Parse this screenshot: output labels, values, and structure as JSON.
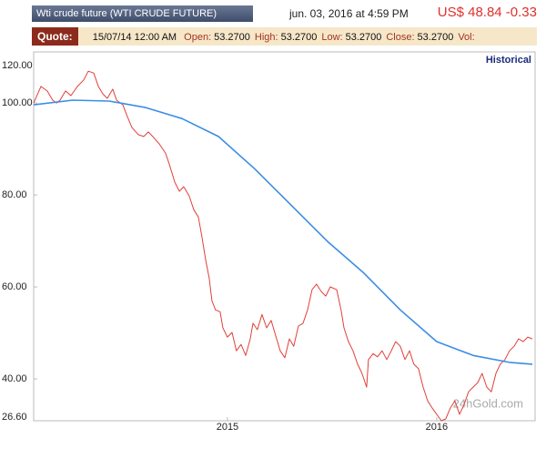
{
  "header": {
    "title": "Wti crude future (WTI CRUDE FUTURE)",
    "timestamp": "jun. 03, 2016 at 4:59 PM",
    "price": "US$ 48.84 -0.33"
  },
  "quote": {
    "label": "Quote:",
    "date": "15/07/14 12:00 AM",
    "fields": [
      {
        "name": "Open:",
        "value": "53.2700"
      },
      {
        "name": "High:",
        "value": "53.2700"
      },
      {
        "name": "Low:",
        "value": "53.2700"
      },
      {
        "name": "Close:",
        "value": "53.2700"
      },
      {
        "name": "Vol:"
      }
    ]
  },
  "chart_data": {
    "type": "line",
    "range_label": "Historical",
    "watermark": "24hGold.com",
    "y_end_labels": [
      "120.00",
      "26.60"
    ],
    "xlim": [
      2014.074,
      2016.47
    ],
    "xticks": [
      2015,
      2016
    ],
    "ylim": [
      30.9,
      111.1
    ],
    "yticks": [
      {
        "value": 40,
        "label": "40.00"
      },
      {
        "value": 60,
        "label": "60.00"
      },
      {
        "value": 80,
        "label": "80.00"
      },
      {
        "value": 100,
        "label": "100.00"
      }
    ],
    "grid": false,
    "series": [
      {
        "color": "#e0403a",
        "x": [
          2014.074,
          2014.109,
          2014.139,
          2014.165,
          2014.183,
          2014.2,
          2014.226,
          2014.252,
          2014.283,
          2014.313,
          2014.335,
          2014.361,
          2014.383,
          2014.404,
          2014.426,
          2014.452,
          2014.47,
          2014.5,
          2014.522,
          2014.543,
          2014.574,
          2014.6,
          2014.622,
          2014.643,
          2014.674,
          2014.704,
          2014.722,
          2014.748,
          2014.77,
          2014.791,
          2014.817,
          2014.839,
          2014.861,
          2014.878,
          2014.896,
          2014.913,
          2014.926,
          2014.943,
          2014.965,
          2014.978,
          2015.0,
          2015.022,
          2015.043,
          2015.065,
          2015.087,
          2015.109,
          2015.122,
          2015.143,
          2015.165,
          2015.187,
          2015.209,
          2015.23,
          2015.252,
          2015.274,
          2015.296,
          2015.317,
          2015.339,
          2015.361,
          2015.383,
          2015.404,
          2015.426,
          2015.448,
          2015.47,
          2015.491,
          2015.522,
          2015.543,
          2015.557,
          2015.578,
          2015.6,
          2015.622,
          2015.643,
          2015.665,
          2015.674,
          2015.696,
          2015.717,
          2015.739,
          2015.761,
          2015.783,
          2015.804,
          2015.826,
          2015.848,
          2015.87,
          2015.891,
          2015.913,
          2015.935,
          2015.957,
          2015.978,
          2016.0,
          2016.022,
          2016.043,
          2016.065,
          2016.087,
          2016.109,
          2016.13,
          2016.152,
          2016.174,
          2016.196,
          2016.217,
          2016.239,
          2016.261,
          2016.283,
          2016.304,
          2016.326,
          2016.348,
          2016.37,
          2016.391,
          2016.413,
          2016.435,
          2016.457
        ],
        "values": [
          100,
          103.6,
          102.6,
          100.6,
          100,
          100.6,
          102.6,
          101.6,
          103.6,
          105,
          106.9,
          106.5,
          103.6,
          102,
          101,
          103,
          100.6,
          99.6,
          97,
          94.7,
          93.1,
          92.7,
          93.7,
          92.7,
          91.1,
          89.1,
          86.7,
          82.8,
          80.8,
          81.8,
          79.8,
          76.8,
          75.2,
          70.9,
          65.9,
          61.9,
          57,
          55,
          54.6,
          51.1,
          49.1,
          50.1,
          46.1,
          47.5,
          45.1,
          48.7,
          52.1,
          50.7,
          54,
          51.1,
          52.7,
          49.5,
          46.1,
          44.6,
          48.7,
          47.1,
          51.5,
          52.1,
          55,
          59.4,
          60.6,
          59,
          58,
          60,
          59.4,
          55,
          51.1,
          48.1,
          46.1,
          43.2,
          41.2,
          38.2,
          44.2,
          45.5,
          44.8,
          46.1,
          44.2,
          46.1,
          48.1,
          47.1,
          44.2,
          46.1,
          43.2,
          42.2,
          38.2,
          35.2,
          33.7,
          32.3,
          30.9,
          31.3,
          33.7,
          35.2,
          32.3,
          34.3,
          37.2,
          38.2,
          39.2,
          41.2,
          38.2,
          37.2,
          41.2,
          43.2,
          44.2,
          46.1,
          47.1,
          48.7,
          48.1,
          49.1,
          48.7
        ]
      },
      {
        "color": "#3a8ee6",
        "x": [
          2014.074,
          2014.261,
          2014.435,
          2014.609,
          2014.783,
          2014.957,
          2015.13,
          2015.304,
          2015.478,
          2015.652,
          2015.826,
          2016.0,
          2016.174,
          2016.348,
          2016.457
        ],
        "values": [
          99.6,
          100.6,
          100.4,
          99,
          96.6,
          92.7,
          85.7,
          77.8,
          69.9,
          63,
          55,
          48.1,
          45.1,
          43.6,
          43.2
        ]
      }
    ]
  }
}
